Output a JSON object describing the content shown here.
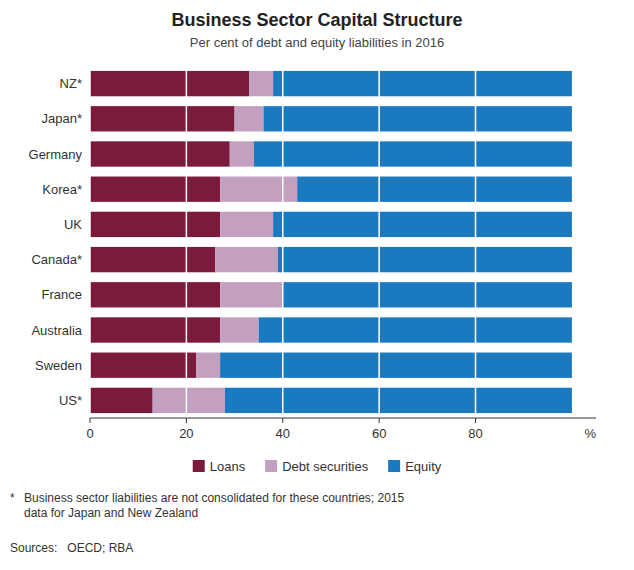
{
  "chart_data": {
    "type": "bar",
    "orientation": "horizontal",
    "stacked": true,
    "title": "Business Sector Capital Structure",
    "subtitle": "Per cent of debt and equity liabilities in 2016",
    "xlabel": "%",
    "categories": [
      "NZ*",
      "Japan*",
      "Germany",
      "Korea*",
      "UK",
      "Canada*",
      "France",
      "Australia",
      "Sweden",
      "US*"
    ],
    "series": [
      {
        "name": "Loans",
        "color": "#7B1A3C",
        "values": [
          33,
          30,
          29,
          27,
          27,
          26,
          27,
          27,
          22,
          13
        ]
      },
      {
        "name": "Debt securities",
        "color": "#C4A0C0",
        "values": [
          5,
          6,
          5,
          16,
          11,
          13,
          13,
          8,
          5,
          15
        ]
      },
      {
        "name": "Equity",
        "color": "#1B7ABF",
        "values": [
          62,
          64,
          66,
          57,
          62,
          61,
          60,
          65,
          73,
          72
        ]
      }
    ],
    "xlim": [
      0,
      105
    ],
    "xticks": [
      0,
      20,
      40,
      60,
      80
    ],
    "grid": true,
    "legend": "bottom",
    "annotations": [
      "*",
      "Business sector liabilities are not consolidated for these countries; 2015\ndata for Japan and New Zealand",
      "Sources:   OECD; RBA"
    ]
  }
}
